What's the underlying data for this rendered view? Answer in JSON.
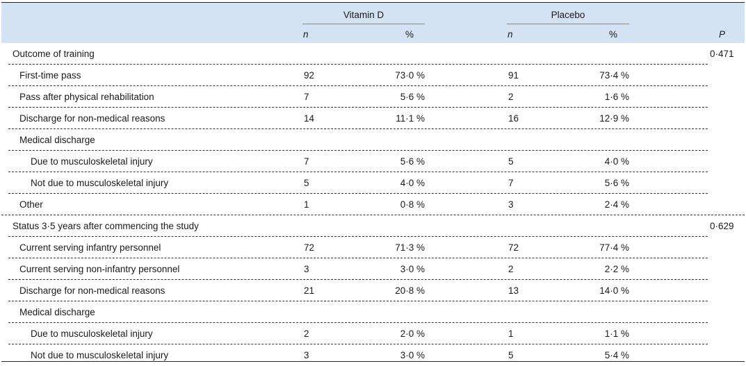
{
  "header": {
    "vitamin_d": "Vitamin D",
    "placebo": "Placebo",
    "n": "n",
    "pct": "%",
    "p": "P"
  },
  "rows": [
    {
      "label": "Outcome of training",
      "level": 0,
      "p": "0·471"
    },
    {
      "label": "First-time pass",
      "level": 1,
      "vd_n": "92",
      "vd_pct": "73·0 %",
      "pl_n": "91",
      "pl_pct": "73·4 %"
    },
    {
      "label": "Pass after physical rehabilitation",
      "level": 1,
      "vd_n": "7",
      "vd_pct": "5·6 %",
      "pl_n": "2",
      "pl_pct": "1·6 %"
    },
    {
      "label": "Discharge for non-medical reasons",
      "level": 1,
      "vd_n": "14",
      "vd_pct": "11·1 %",
      "pl_n": "16",
      "pl_pct": "12·9 %"
    },
    {
      "label": "Medical discharge",
      "level": 1
    },
    {
      "label": "Due to musculoskeletal injury",
      "level": 2,
      "vd_n": "7",
      "vd_pct": "5·6 %",
      "pl_n": "5",
      "pl_pct": "4·0 %"
    },
    {
      "label": "Not due to musculoskeletal injury",
      "level": 2,
      "vd_n": "5",
      "vd_pct": "4·0 %",
      "pl_n": "7",
      "pl_pct": "5·6 %"
    },
    {
      "label": "Other",
      "level": 1,
      "vd_n": "1",
      "vd_pct": "0·8 %",
      "pl_n": "3",
      "pl_pct": "2·4 %"
    },
    {
      "label": "Status 3·5 years after commencing the study",
      "level": 0,
      "p": "0·629"
    },
    {
      "label": "Current serving infantry personnel",
      "level": 1,
      "vd_n": "72",
      "vd_pct": "71·3 %",
      "pl_n": "72",
      "pl_pct": "77·4 %"
    },
    {
      "label": "Current serving non-infantry personnel",
      "level": 1,
      "vd_n": "3",
      "vd_pct": "3·0 %",
      "pl_n": "2",
      "pl_pct": "2·2 %"
    },
    {
      "label": "Discharge for non-medical reasons",
      "level": 1,
      "vd_n": "21",
      "vd_pct": "20·8 %",
      "pl_n": "13",
      "pl_pct": "14·0 %"
    },
    {
      "label": "Medical discharge",
      "level": 1
    },
    {
      "label": "Due to musculoskeletal injury",
      "level": 2,
      "vd_n": "2",
      "vd_pct": "2·0 %",
      "pl_n": "1",
      "pl_pct": "1·1 %"
    },
    {
      "label": "Not due to musculoskeletal injury",
      "level": 2,
      "vd_n": "3",
      "vd_pct": "3·0 %",
      "pl_n": "5",
      "pl_pct": "5·4 %"
    }
  ]
}
